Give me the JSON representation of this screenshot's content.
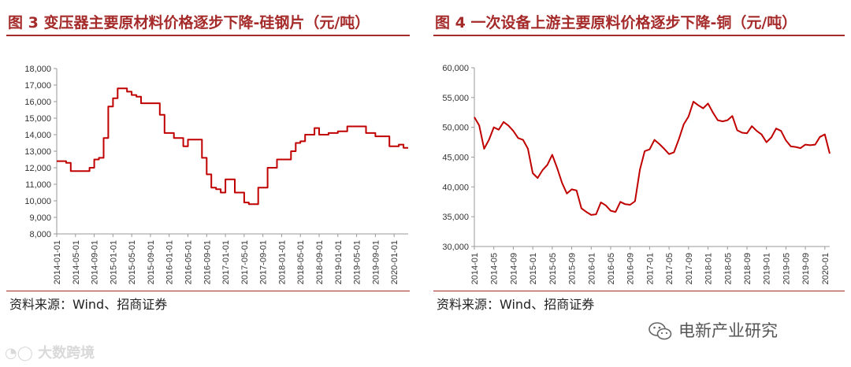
{
  "panels": {
    "left": {
      "title": "图 3  变压器主要原材料价格逐步下降-硅钢片（元/吨）",
      "source": "资料来源：Wind、招商证券"
    },
    "right": {
      "title": "图 4  一次设备上游主要原料价格逐步下降-铜（元/吨）",
      "source": "资料来源：Wind、招商证券"
    }
  },
  "watermarks": {
    "wechat_account": "电新产业研究",
    "brand": "大数跨境"
  },
  "colors": {
    "accent": "#a52a2a",
    "line": "#c00000"
  },
  "chart_data": [
    {
      "type": "line",
      "step": true,
      "title": "",
      "xlabel": "",
      "ylabel": "",
      "ylim": [
        8000,
        18000
      ],
      "yticks": [
        8000,
        9000,
        10000,
        11000,
        12000,
        13000,
        14000,
        15000,
        16000,
        17000,
        18000
      ],
      "ytick_labels": [
        "8,000",
        "9,000",
        "10,000",
        "11,000",
        "12,000",
        "13,000",
        "14,000",
        "15,000",
        "16,000",
        "17,000",
        "18,000"
      ],
      "xlim": [
        "2014-01",
        "2020-04"
      ],
      "xtick_labels": [
        "2014-01-01",
        "2014-05-01",
        "2014-09-01",
        "2015-01-01",
        "2015-05-01",
        "2015-09-01",
        "2016-01-01",
        "2016-05-01",
        "2016-09-01",
        "2017-01-01",
        "2017-05-01",
        "2017-09-01",
        "2018-01-01",
        "2018-05-01",
        "2018-09-01",
        "2019-01-01",
        "2019-05-01",
        "2019-09-01",
        "2020-01-01"
      ],
      "xtick_values": [
        "2014-01",
        "2014-05",
        "2014-09",
        "2015-01",
        "2015-05",
        "2015-09",
        "2016-01",
        "2016-05",
        "2016-09",
        "2017-01",
        "2017-05",
        "2017-09",
        "2018-01",
        "2018-05",
        "2018-09",
        "2019-01",
        "2019-05",
        "2019-09",
        "2020-01"
      ],
      "grid": false,
      "series": [
        {
          "x": [
            "2014-01",
            "2014-03",
            "2014-04",
            "2014-05",
            "2014-07",
            "2014-08",
            "2014-09",
            "2014-10",
            "2014-11",
            "2014-12",
            "2015-01",
            "2015-02",
            "2015-04",
            "2015-05",
            "2015-06",
            "2015-07",
            "2015-08",
            "2015-10",
            "2015-11",
            "2015-12",
            "2016-02",
            "2016-03",
            "2016-04",
            "2016-05",
            "2016-07",
            "2016-08",
            "2016-09",
            "2016-10",
            "2016-11",
            "2016-12",
            "2017-01",
            "2017-02",
            "2017-03",
            "2017-04",
            "2017-05",
            "2017-06",
            "2017-07",
            "2017-08",
            "2017-10",
            "2017-12",
            "2018-02",
            "2018-03",
            "2018-04",
            "2018-05",
            "2018-06",
            "2018-08",
            "2018-09",
            "2018-10",
            "2018-11",
            "2018-12",
            "2019-01",
            "2019-03",
            "2019-05",
            "2019-06",
            "2019-07",
            "2019-08",
            "2019-09",
            "2019-10",
            "2019-11",
            "2019-12",
            "2020-01",
            "2020-02",
            "2020-03",
            "2020-04"
          ],
          "values": [
            12400,
            12300,
            11800,
            11800,
            11800,
            12000,
            12500,
            12600,
            13800,
            15700,
            16200,
            16800,
            16600,
            16400,
            16300,
            15900,
            15900,
            15900,
            15200,
            14100,
            13800,
            13800,
            13300,
            13700,
            13700,
            12600,
            11600,
            10800,
            10700,
            10500,
            11300,
            11300,
            10500,
            10500,
            9900,
            9800,
            9800,
            10800,
            12000,
            12500,
            12500,
            13000,
            13500,
            13600,
            14000,
            14400,
            14000,
            14000,
            14100,
            14100,
            14200,
            14500,
            14500,
            14500,
            14100,
            14100,
            13900,
            13900,
            13900,
            13300,
            13300,
            13400,
            13200,
            13200
          ]
        }
      ]
    },
    {
      "type": "line",
      "title": "",
      "xlabel": "",
      "ylabel": "",
      "ylim": [
        30000,
        60000
      ],
      "yticks": [
        30000,
        35000,
        40000,
        45000,
        50000,
        55000,
        60000
      ],
      "ytick_labels": [
        "30,000",
        "35,000",
        "40,000",
        "45,000",
        "50,000",
        "55,000",
        "60,000"
      ],
      "xlim": [
        "2014-01",
        "2020-02"
      ],
      "xtick_labels": [
        "2014-01",
        "2014-05",
        "2014-09",
        "2015-01",
        "2015-05",
        "2015-09",
        "2016-01",
        "2016-05",
        "2016-09",
        "2017-01",
        "2017-05",
        "2017-09",
        "2018-01",
        "2018-05",
        "2018-09",
        "2019-01",
        "2019-05",
        "2019-09",
        "2020-01"
      ],
      "xtick_values": [
        "2014-01",
        "2014-05",
        "2014-09",
        "2015-01",
        "2015-05",
        "2015-09",
        "2016-01",
        "2016-05",
        "2016-09",
        "2017-01",
        "2017-05",
        "2017-09",
        "2018-01",
        "2018-05",
        "2018-09",
        "2019-01",
        "2019-05",
        "2019-09",
        "2020-01"
      ],
      "grid": false,
      "series": [
        {
          "x": [
            "2014-01",
            "2014-02",
            "2014-03",
            "2014-04",
            "2014-05",
            "2014-06",
            "2014-07",
            "2014-08",
            "2014-09",
            "2014-10",
            "2014-11",
            "2014-12",
            "2015-01",
            "2015-02",
            "2015-03",
            "2015-04",
            "2015-05",
            "2015-06",
            "2015-07",
            "2015-08",
            "2015-09",
            "2015-10",
            "2015-11",
            "2015-12",
            "2016-01",
            "2016-02",
            "2016-03",
            "2016-04",
            "2016-05",
            "2016-06",
            "2016-07",
            "2016-08",
            "2016-09",
            "2016-10",
            "2016-11",
            "2016-12",
            "2017-01",
            "2017-02",
            "2017-03",
            "2017-04",
            "2017-05",
            "2017-06",
            "2017-07",
            "2017-08",
            "2017-09",
            "2017-10",
            "2017-11",
            "2017-12",
            "2018-01",
            "2018-02",
            "2018-03",
            "2018-04",
            "2018-05",
            "2018-06",
            "2018-07",
            "2018-08",
            "2018-09",
            "2018-10",
            "2018-11",
            "2018-12",
            "2019-01",
            "2019-02",
            "2019-03",
            "2019-04",
            "2019-05",
            "2019-06",
            "2019-07",
            "2019-08",
            "2019-09",
            "2019-10",
            "2019-11",
            "2019-12",
            "2020-01",
            "2020-02"
          ],
          "values": [
            51700,
            50300,
            46400,
            47900,
            50000,
            49600,
            50900,
            50300,
            49400,
            48200,
            47900,
            46400,
            42300,
            41500,
            42800,
            43700,
            45400,
            43200,
            40700,
            38900,
            39600,
            39400,
            36400,
            35800,
            35300,
            35400,
            37400,
            36900,
            36000,
            35800,
            37500,
            37100,
            37000,
            37600,
            42900,
            46000,
            46300,
            47900,
            47200,
            46400,
            45500,
            45800,
            48000,
            50500,
            51800,
            54300,
            53700,
            53200,
            54000,
            52500,
            51200,
            51000,
            51200,
            51900,
            49500,
            49100,
            49000,
            50200,
            49400,
            48800,
            47500,
            48300,
            49800,
            49400,
            47800,
            46800,
            46700,
            46500,
            47100,
            47000,
            47100,
            48400,
            48800,
            45600
          ]
        }
      ]
    }
  ]
}
